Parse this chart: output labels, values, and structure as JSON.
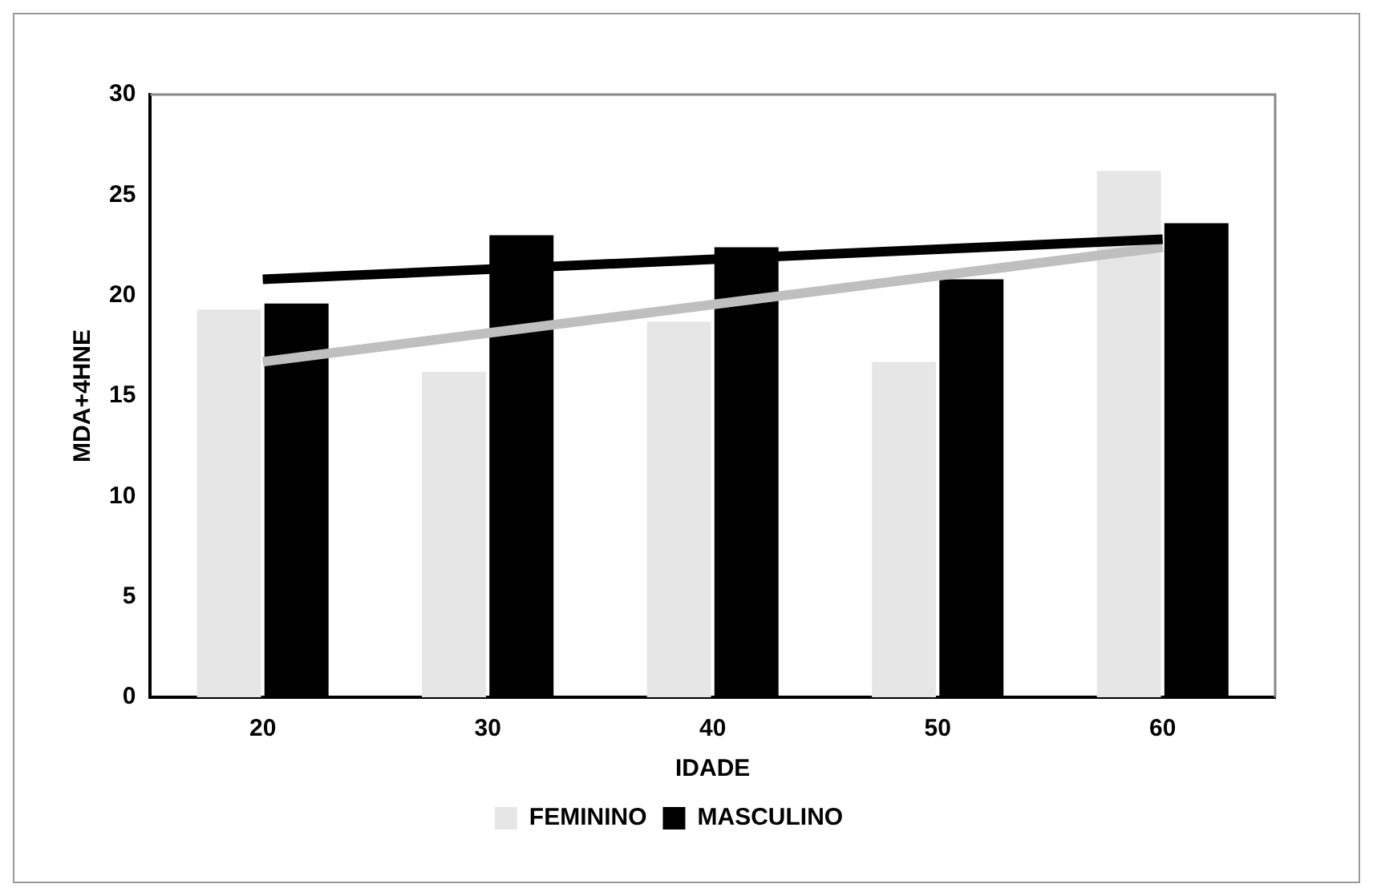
{
  "chart_data": {
    "type": "bar",
    "xlabel": "IDADE",
    "ylabel": "MDA+4HNE",
    "categories": [
      "20",
      "30",
      "40",
      "50",
      "60"
    ],
    "series": [
      {
        "name": "FEMININO",
        "color": "#e6e6e6",
        "values": [
          19.3,
          16.2,
          18.7,
          16.7,
          26.2
        ]
      },
      {
        "name": "MASCULINO",
        "color": "#000000",
        "values": [
          19.6,
          23.0,
          22.4,
          20.8,
          23.6
        ]
      },
      {
        "type": "line",
        "color": "#000000",
        "x": [
          "20",
          "60"
        ],
        "values": [
          20.8,
          22.8
        ]
      },
      {
        "type": "line",
        "color": "#bfbfbf",
        "x": [
          "20",
          "60"
        ],
        "values": [
          16.7,
          22.4
        ]
      }
    ],
    "ylim": [
      0,
      30
    ],
    "yticks": [
      0,
      5,
      10,
      15,
      20,
      25,
      30
    ],
    "grid": false,
    "legend": "bottom",
    "marker": "none"
  }
}
